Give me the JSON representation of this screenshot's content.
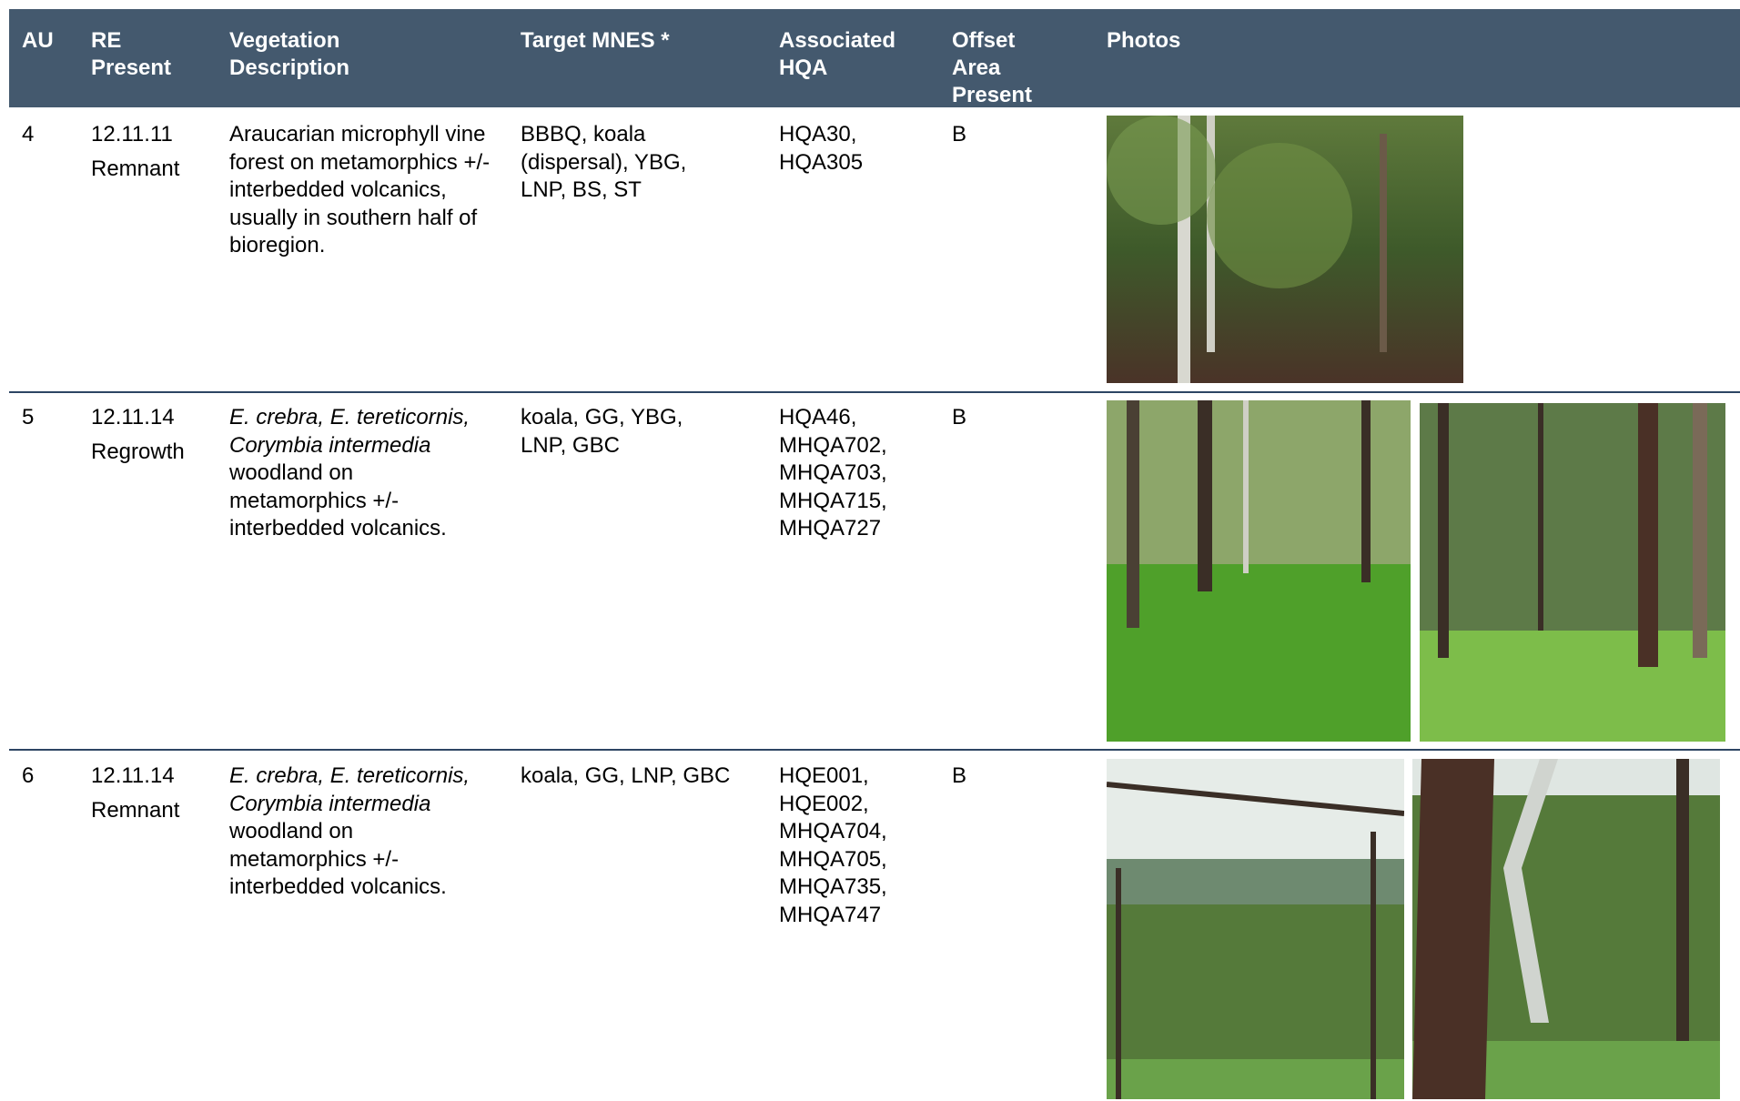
{
  "table": {
    "header": [
      "AU",
      "RE Present",
      "Vegetation Description",
      "Target MNES *",
      "Associated HQA",
      "Offset Area Present",
      "Photos"
    ],
    "rows": [
      {
        "au": "4",
        "re": "12.11.11",
        "status": "Remnant",
        "description": [
          {
            "text": "Araucarian microphyll vine forest on metamorphics +/- interbedded volcanics, usually in southern half of bioregion.",
            "italic": false
          }
        ],
        "target_mnes": "BBBQ, koala (dispersal), YBG, LNP, BS, ST",
        "hqa": "HQA30, HQA305",
        "offset": "B"
      },
      {
        "au": "5",
        "re": "12.11.14",
        "status": "Regrowth",
        "description": [
          {
            "text": "E. crebra, E. tereticornis, Corymbia intermedia",
            "italic": true
          },
          {
            "text": " woodland on metamorphics +/- interbedded volcanics.",
            "italic": false
          }
        ],
        "target_mnes": "koala, GG, YBG, LNP, GBC",
        "hqa": "HQA46, MHQA702, MHQA703, MHQA715, MHQA727",
        "offset": "B"
      },
      {
        "au": "6",
        "re": "12.11.14",
        "status": "Remnant",
        "description": [
          {
            "text": "E. crebra, E. tereticornis, Corymbia intermedia",
            "italic": true
          },
          {
            "text": " woodland on metamorphics +/- interbedded volcanics.",
            "italic": false
          }
        ],
        "target_mnes": "koala, GG, LNP, GBC",
        "hqa": "HQE001, HQE002, MHQA704, MHQA705, MHQA735, MHQA747",
        "offset": "B"
      }
    ]
  }
}
